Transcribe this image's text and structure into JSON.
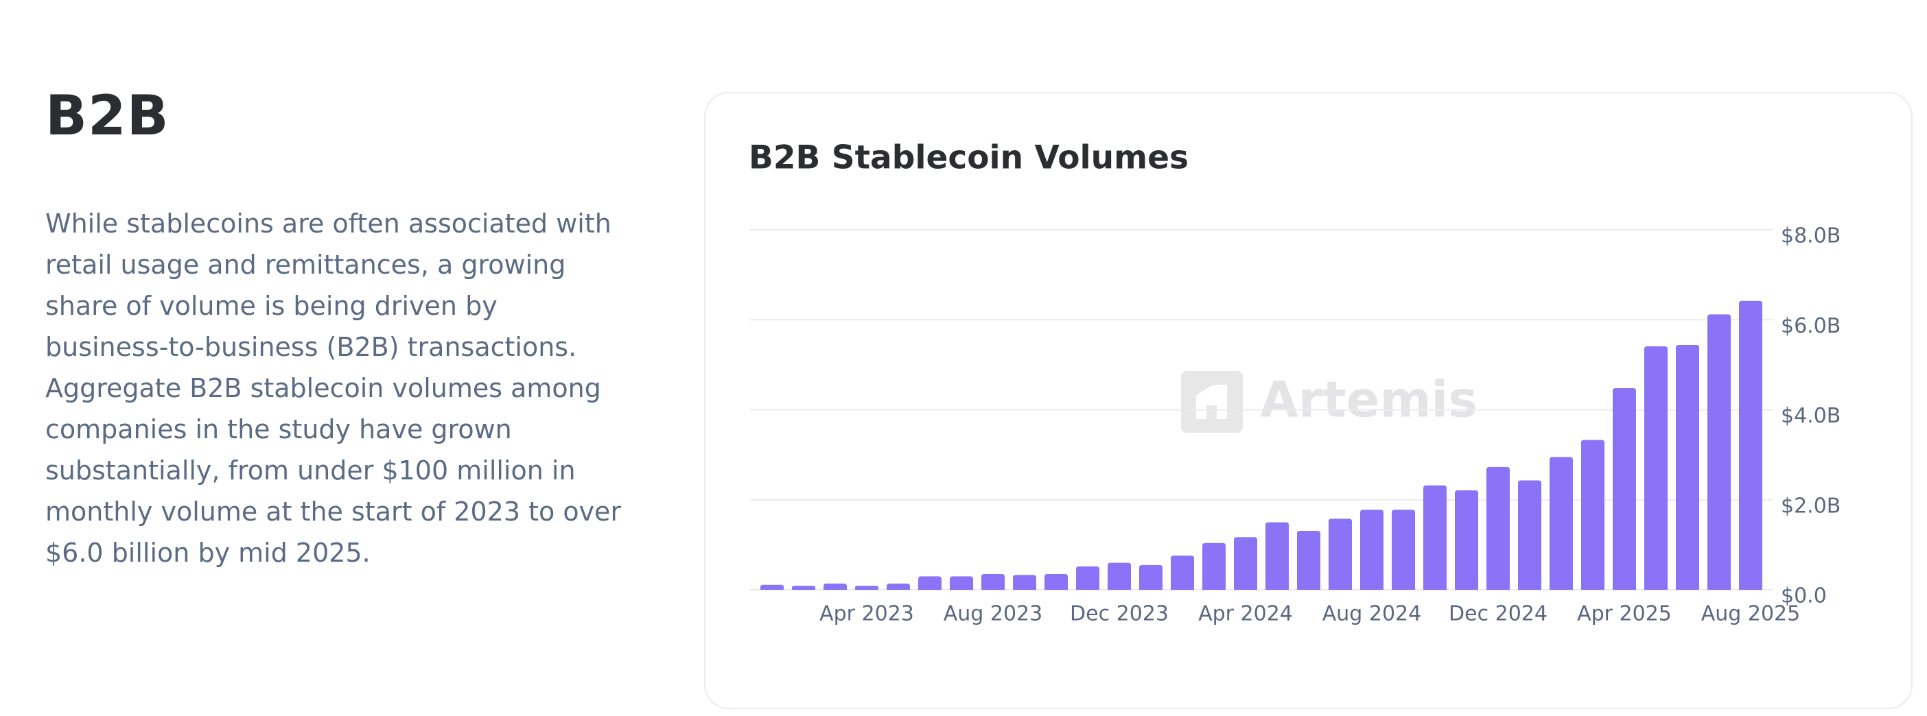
{
  "heading": "B2B",
  "paragraph": [
    "While stablecoins are often associated with",
    "retail usage and remittances, a growing",
    "share of volume is being driven by",
    "business-to-business (B2B) transactions.",
    "Aggregate B2B stablecoin volumes among",
    "companies in the study have grown",
    "substantially, from under $100 million in",
    "monthly volume at the start of 2023 to over",
    "$6.0 billion by mid 2025."
  ],
  "chart_data": {
    "type": "bar",
    "title": "B2B Stablecoin Volumes",
    "watermark": "Artemis",
    "color": "#8a73f7",
    "categories": [
      null,
      null,
      null,
      "Apr 2023",
      null,
      null,
      null,
      "Aug 2023",
      null,
      null,
      null,
      "Dec 2023",
      null,
      null,
      null,
      "Apr 2024",
      null,
      null,
      null,
      "Aug 2024",
      null,
      null,
      null,
      "Dec 2024",
      null,
      null,
      null,
      "Apr 2025",
      null,
      null,
      null,
      "Aug 2025"
    ],
    "values": [
      0.11,
      0.09,
      0.14,
      0.09,
      0.14,
      0.3,
      0.3,
      0.35,
      0.33,
      0.35,
      0.52,
      0.6,
      0.55,
      0.76,
      1.04,
      1.17,
      1.5,
      1.31,
      1.58,
      1.78,
      1.78,
      2.32,
      2.21,
      2.73,
      2.43,
      2.95,
      3.33,
      4.48,
      5.41,
      5.44,
      6.12,
      6.42
    ],
    "ylim": [
      0,
      8
    ],
    "yticks": [
      {
        "value": 0,
        "label": "$0.0"
      },
      {
        "value": 2,
        "label": "$2.0B"
      },
      {
        "value": 4,
        "label": "$4.0B"
      },
      {
        "value": 6,
        "label": "$6.0B"
      },
      {
        "value": 8,
        "label": "$8.0B"
      }
    ],
    "grid": true
  }
}
